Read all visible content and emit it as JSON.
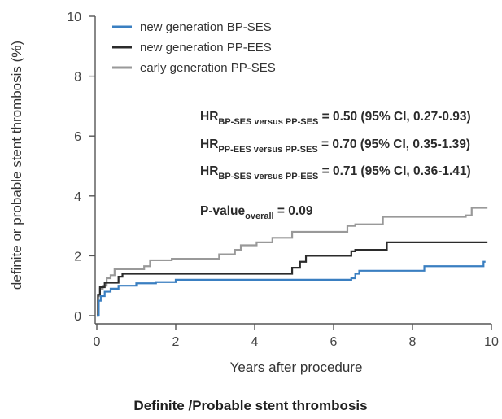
{
  "chart_data": {
    "type": "line",
    "step": true,
    "title": "",
    "caption": "Definite /Probable stent thrombosis",
    "xlabel": "Years after procedure",
    "ylabel": "definite or probable stent thrombosis (%)",
    "xlim": [
      0,
      10
    ],
    "ylim": [
      0,
      10
    ],
    "xticks": [
      "0",
      "2",
      "4",
      "6",
      "8",
      "10"
    ],
    "yticks": [
      "0",
      "2",
      "4",
      "6",
      "8",
      "10"
    ],
    "grid": false,
    "legend_position": "top-left",
    "series": [
      {
        "name": "new generation BP-SES",
        "color": "#3a7fc1",
        "x": [
          0,
          0.05,
          0.1,
          0.2,
          0.35,
          0.55,
          1.0,
          1.5,
          2.0,
          6.45,
          6.55,
          6.65,
          8.3,
          9.8,
          9.85
        ],
        "y": [
          0,
          0.5,
          0.65,
          0.8,
          0.9,
          1.0,
          1.08,
          1.12,
          1.2,
          1.25,
          1.4,
          1.5,
          1.65,
          1.8,
          1.8
        ]
      },
      {
        "name": "new generation PP-EES",
        "color": "#2b2b2b",
        "x": [
          0,
          0.03,
          0.08,
          0.2,
          0.55,
          0.65,
          4.95,
          5.15,
          5.3,
          6.45,
          6.55,
          7.35,
          9.9
        ],
        "y": [
          0,
          0.7,
          0.95,
          1.1,
          1.3,
          1.4,
          1.6,
          1.8,
          2.0,
          2.15,
          2.2,
          2.45,
          2.45
        ]
      },
      {
        "name": "early generation PP-SES",
        "color": "#999999",
        "x": [
          0,
          0.03,
          0.08,
          0.15,
          0.25,
          0.35,
          0.45,
          1.2,
          1.35,
          1.9,
          3.1,
          3.5,
          3.65,
          4.05,
          4.45,
          4.95,
          6.35,
          6.55,
          7.25,
          9.35,
          9.5,
          9.75,
          9.9
        ],
        "y": [
          0,
          0.65,
          0.9,
          1.0,
          1.25,
          1.35,
          1.55,
          1.65,
          1.85,
          1.9,
          2.05,
          2.2,
          2.35,
          2.45,
          2.6,
          2.8,
          3.0,
          3.05,
          3.3,
          3.35,
          3.6,
          3.6,
          3.6
        ]
      }
    ],
    "annotations": [
      {
        "main": "HR",
        "sub": "BP-SES versus PP-SES",
        "rest": " = 0.50 (95% CI, 0.27-0.93)"
      },
      {
        "main": "HR",
        "sub": "PP-EES versus PP-SES",
        "rest": " = 0.70 (95% CI, 0.35-1.39)"
      },
      {
        "main": "HR",
        "sub": "BP-SES versus PP-EES",
        "rest": " = 0.71 (95% CI, 0.36-1.41)"
      },
      {
        "main": "P-value",
        "sub": "overall",
        "rest": " = 0.09"
      }
    ]
  }
}
